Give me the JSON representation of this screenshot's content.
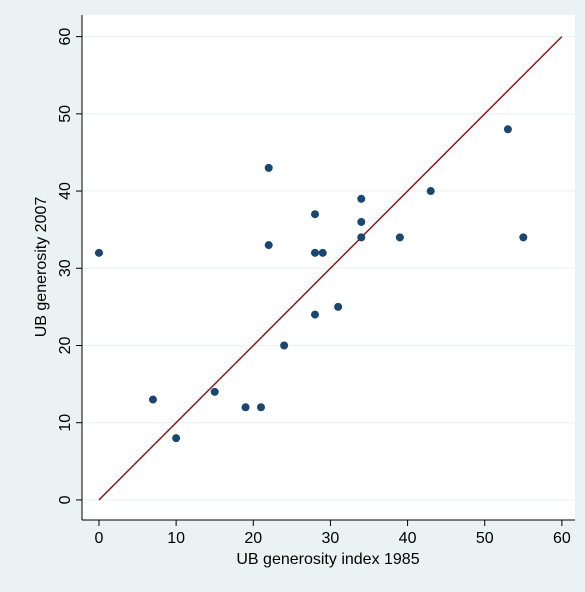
{
  "chart_data": {
    "type": "scatter",
    "x_label": "UB generosity index 1985",
    "y_label": "UB generosity 2007",
    "xlim": [
      -2.2,
      61.7
    ],
    "ylim": [
      -2.6,
      62.8
    ],
    "xticks": [
      0,
      10,
      20,
      30,
      40,
      50,
      60
    ],
    "yticks": [
      0,
      10,
      20,
      30,
      40,
      50,
      60
    ],
    "grid": true,
    "series": [
      {
        "color": "#1a476f",
        "x": [
          0,
          7,
          10,
          15,
          19,
          21,
          22,
          22,
          24,
          28,
          28,
          29,
          28,
          31,
          34,
          34,
          34,
          39,
          43,
          53,
          55
        ],
        "values": [
          32,
          13,
          8,
          14,
          12,
          12,
          43,
          33,
          20,
          37,
          32,
          32,
          24,
          25,
          39,
          36,
          34,
          34,
          40,
          48,
          34
        ]
      }
    ],
    "reference_line": {
      "color": "#8b1a1a",
      "x": [
        0,
        60
      ],
      "values": [
        0,
        60
      ]
    }
  }
}
